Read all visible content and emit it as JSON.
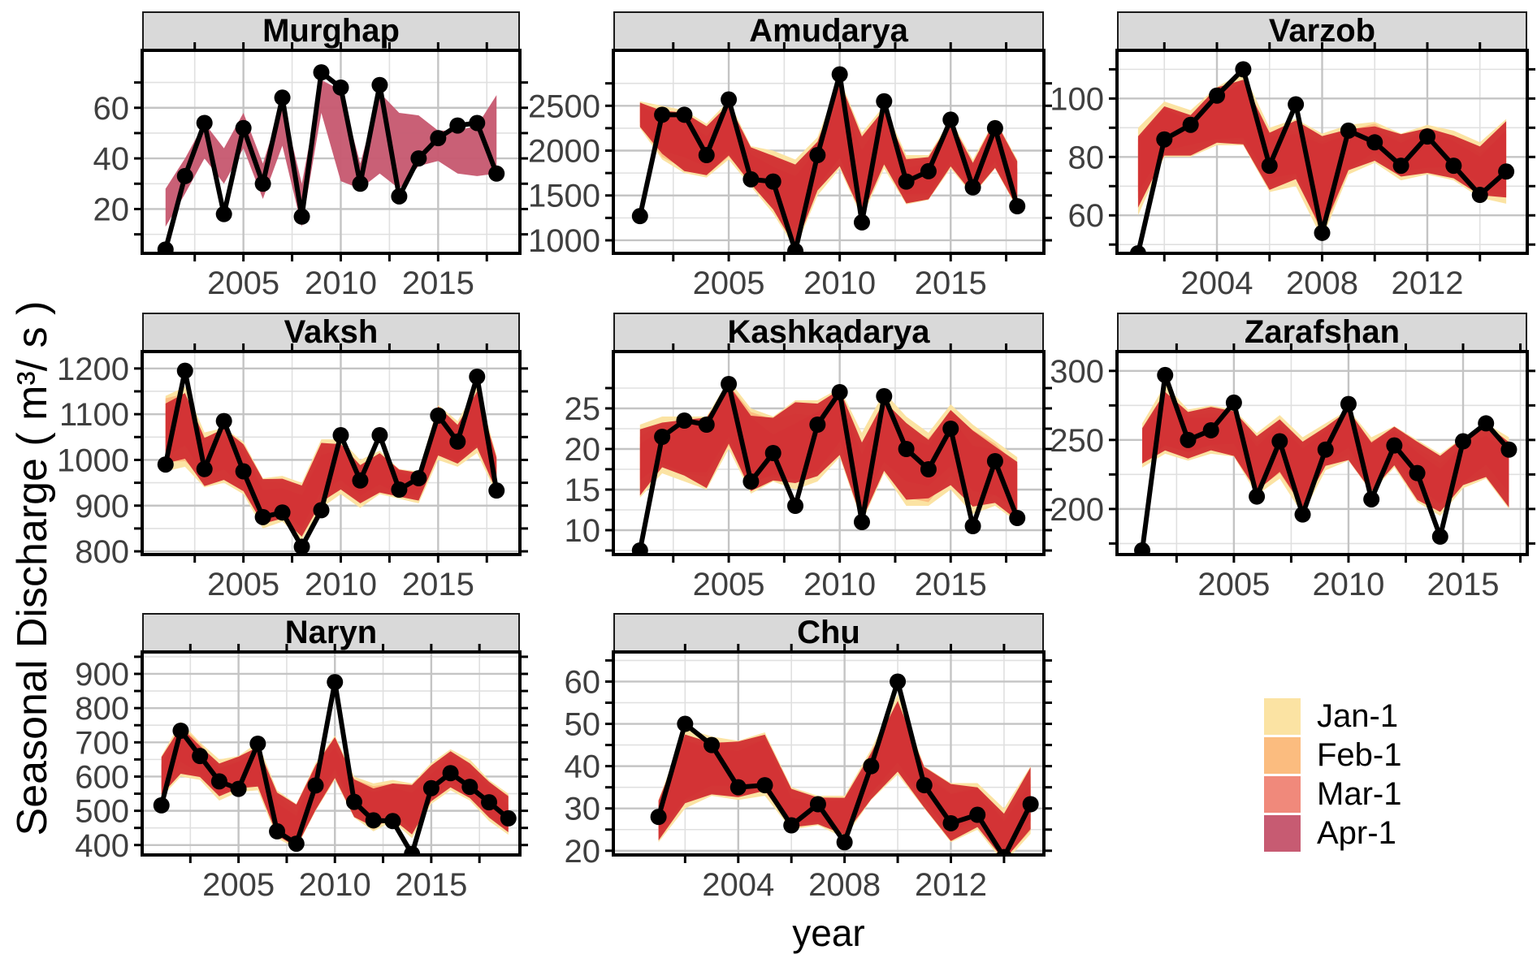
{
  "chart_data": {
    "type": "line",
    "title": "",
    "xlabel": "year",
    "ylabel": "Seasonal Discharge ( m³/ s )",
    "legend": {
      "position": "bottom-right",
      "entries": [
        {
          "label": "Jan-1",
          "color": "#FBE3A3"
        },
        {
          "label": "Feb-1",
          "color": "#FBBC7F"
        },
        {
          "label": "Mar-1",
          "color": "#F0897B"
        },
        {
          "label": "Apr-1",
          "color": "#C75B72"
        }
      ]
    },
    "ribbon_colors": {
      "jan": "#FBE3A3",
      "feb": "#FBBC7F",
      "mar": "#F0897B",
      "apr": "#D12E31",
      "apr_solo": "#C75B72"
    },
    "line_color": "#000000",
    "grid": "major+minor",
    "panels": [
      {
        "title": "Murghap",
        "x_start": 2001,
        "x_ticks": [
          2005,
          2010,
          2015
        ],
        "y_ticks": [
          20,
          40,
          60
        ],
        "x_range": [
          1999.8,
          2019.2
        ],
        "y_range": [
          2.5,
          82.7
        ],
        "ribbon": "apr-only",
        "values": [
          4,
          33,
          54,
          18,
          52,
          30,
          64,
          17,
          74,
          68,
          30,
          69,
          25,
          40,
          48,
          53,
          54,
          34
        ],
        "band_low": [
          13,
          26,
          40,
          30,
          44,
          24,
          45,
          13,
          58,
          31,
          28,
          34,
          28,
          37,
          39,
          34,
          33,
          34
        ],
        "band_high": [
          28,
          40,
          54,
          44,
          58,
          38,
          62,
          30,
          71,
          67,
          38,
          66,
          58,
          57,
          51,
          51,
          53,
          65
        ]
      },
      {
        "title": "Amudarya",
        "x_start": 2001,
        "x_ticks": [
          2005,
          2010,
          2015
        ],
        "y_ticks": [
          1000,
          1500,
          2000,
          2500
        ],
        "x_range": [
          1999.8,
          2019.2
        ],
        "y_range": [
          855,
          3118
        ],
        "ribbon": "layered",
        "values": [
          1270,
          2400,
          2400,
          1950,
          2570,
          1680,
          1655,
          880,
          1950,
          2850,
          1200,
          2550,
          1655,
          1770,
          2345,
          1590,
          2250,
          1380
        ],
        "band_low": [
          2250,
          1900,
          1750,
          1700,
          1900,
          1600,
          1300,
          900,
          1500,
          1800,
          1250,
          1800,
          1400,
          1450,
          1800,
          1500,
          1800,
          1350
        ],
        "band_high": [
          2550,
          2500,
          2450,
          2300,
          2560,
          2050,
          2000,
          1900,
          2150,
          2800,
          2200,
          2500,
          1950,
          1950,
          2350,
          1900,
          2350,
          1900
        ]
      },
      {
        "title": "Varzob",
        "x_start": 2001,
        "x_ticks": [
          2004,
          2008,
          2012
        ],
        "y_ticks": [
          60,
          80,
          100
        ],
        "x_range": [
          2000.2,
          2015.8
        ],
        "y_range": [
          47,
          116.5
        ],
        "ribbon": "layered",
        "values": [
          47,
          86,
          91,
          101,
          110,
          77,
          98,
          54,
          89,
          85,
          77,
          87,
          77,
          67,
          75
        ],
        "band_low": [
          60,
          80,
          80,
          84,
          84,
          68,
          70,
          52,
          74,
          78,
          72,
          74,
          72,
          66,
          64
        ],
        "band_high": [
          90,
          99,
          96,
          104,
          109,
          90,
          93,
          88,
          91,
          92,
          88,
          91,
          89,
          85,
          93
        ]
      },
      {
        "title": "Vaksh",
        "x_start": 2001,
        "x_ticks": [
          2005,
          2010,
          2015
        ],
        "y_ticks": [
          800,
          900,
          1000,
          1100,
          1200
        ],
        "x_range": [
          1999.8,
          2019.2
        ],
        "y_range": [
          793,
          1237
        ],
        "ribbon": "layered",
        "values": [
          990,
          1195,
          980,
          1085,
          975,
          875,
          885,
          810,
          890,
          1054,
          955,
          1054,
          935,
          960,
          1097,
          1040,
          1182,
          933
        ],
        "band_low": [
          975,
          985,
          940,
          950,
          925,
          850,
          865,
          825,
          895,
          925,
          895,
          925,
          915,
          905,
          1000,
          985,
          1015,
          925
        ],
        "band_high": [
          1140,
          1160,
          1060,
          1070,
          1040,
          960,
          965,
          950,
          1045,
          1045,
          1000,
          1020,
          980,
          975,
          1120,
          1085,
          1160,
          1010
        ]
      },
      {
        "title": "Kashkadarya",
        "x_start": 2001,
        "x_ticks": [
          2005,
          2010,
          2015
        ],
        "y_ticks": [
          10,
          15,
          20,
          25
        ],
        "x_range": [
          1999.8,
          2019.2
        ],
        "y_range": [
          7,
          32
        ],
        "ribbon": "layered",
        "values": [
          7.5,
          21.5,
          23.5,
          23,
          28,
          16,
          19.5,
          13,
          23,
          27,
          11,
          26.5,
          20,
          17.5,
          22.5,
          10.5,
          18.5,
          11.5
        ],
        "band_low": [
          14,
          17,
          16,
          15,
          20,
          14.5,
          16,
          15,
          16,
          19,
          11,
          17,
          13,
          13,
          15,
          12,
          13,
          11
        ],
        "band_high": [
          23,
          24,
          24,
          24,
          28.5,
          25,
          24,
          26,
          26,
          27.5,
          22,
          27,
          24,
          22,
          25.5,
          23,
          21,
          19
        ]
      },
      {
        "title": "Zarafshan",
        "x_start": 2001,
        "x_ticks": [
          2005,
          2010,
          2015
        ],
        "y_ticks": [
          200,
          250,
          300
        ],
        "x_range": [
          1999.9,
          2017.8
        ],
        "y_range": [
          167,
          314
        ],
        "ribbon": "layered",
        "values": [
          170,
          297,
          250,
          257,
          277,
          209,
          249,
          196,
          243,
          276,
          207,
          246,
          226,
          180,
          249,
          262,
          243
        ],
        "band_low": [
          230,
          240,
          235,
          240,
          238,
          210,
          222,
          196,
          228,
          235,
          212,
          230,
          205,
          195,
          215,
          222,
          200
        ],
        "band_high": [
          262,
          290,
          272,
          275,
          272,
          255,
          268,
          252,
          262,
          272,
          252,
          260,
          250,
          240,
          252,
          262,
          252
        ]
      },
      {
        "title": "Naryn",
        "x_start": 2001,
        "x_ticks": [
          2005,
          2010,
          2015
        ],
        "y_ticks": [
          400,
          500,
          600,
          700,
          800,
          900
        ],
        "x_range": [
          2000.0,
          2019.6
        ],
        "y_range": [
          371,
          964
        ],
        "ribbon": "layered",
        "values": [
          516,
          734,
          660,
          586,
          564,
          696,
          440,
          404,
          574,
          876,
          526,
          472,
          470,
          374,
          566,
          610,
          570,
          525,
          478
        ],
        "band_low": [
          540,
          600,
          590,
          530,
          555,
          560,
          420,
          390,
          500,
          590,
          480,
          440,
          470,
          420,
          520,
          560,
          530,
          470,
          430
        ],
        "band_high": [
          660,
          760,
          700,
          650,
          660,
          700,
          560,
          520,
          640,
          720,
          600,
          580,
          590,
          580,
          640,
          680,
          650,
          590,
          550
        ]
      },
      {
        "title": "Chu",
        "x_start": 2001,
        "x_ticks": [
          2004,
          2008,
          2012
        ],
        "y_ticks": [
          20,
          30,
          40,
          50,
          60
        ],
        "x_range": [
          1999.3,
          2015.5
        ],
        "y_range": [
          19,
          67
        ],
        "ribbon": "layered",
        "values": [
          28,
          50,
          45,
          35,
          35.5,
          26,
          31,
          22,
          40,
          60,
          35.5,
          26.5,
          28.5,
          18.5,
          31
        ],
        "band_low": [
          22,
          30,
          33,
          32,
          33,
          25,
          26,
          23,
          32,
          38,
          30,
          22,
          25,
          17,
          24
        ],
        "band_high": [
          32,
          49,
          47,
          46,
          48,
          35,
          33,
          33,
          44,
          57,
          40,
          36,
          36,
          30,
          40
        ]
      }
    ]
  }
}
